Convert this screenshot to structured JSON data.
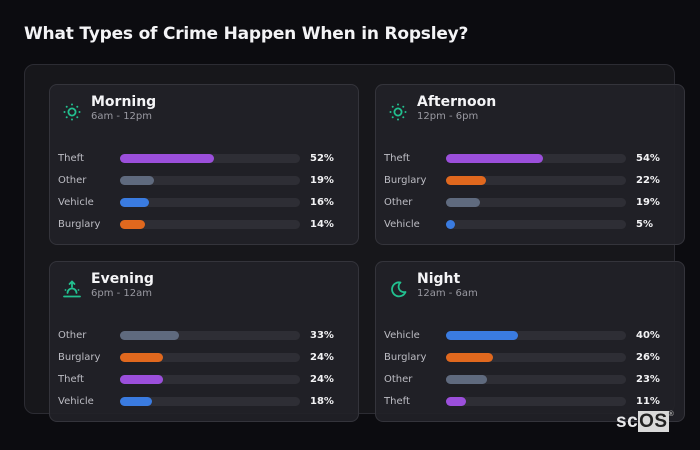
{
  "title": "What Types of Crime Happen When in Ropsley?",
  "colors": {
    "Theft": "#9b4fdb",
    "Other": "#5f6a7e",
    "Vehicle": "#3a7be0",
    "Burglary": "#e0681e",
    "icon": "#22c08f"
  },
  "cards": [
    {
      "name": "Morning",
      "range": "6am - 12pm",
      "icon": "sun-icon",
      "rows": [
        {
          "label": "Theft",
          "value": 52,
          "pct": "52%"
        },
        {
          "label": "Other",
          "value": 19,
          "pct": "19%"
        },
        {
          "label": "Vehicle",
          "value": 16,
          "pct": "16%"
        },
        {
          "label": "Burglary",
          "value": 14,
          "pct": "14%"
        }
      ]
    },
    {
      "name": "Afternoon",
      "range": "12pm - 6pm",
      "icon": "sun-icon",
      "rows": [
        {
          "label": "Theft",
          "value": 54,
          "pct": "54%"
        },
        {
          "label": "Burglary",
          "value": 22,
          "pct": "22%"
        },
        {
          "label": "Other",
          "value": 19,
          "pct": "19%"
        },
        {
          "label": "Vehicle",
          "value": 5,
          "pct": "5%"
        }
      ]
    },
    {
      "name": "Evening",
      "range": "6pm - 12am",
      "icon": "sunset-icon",
      "rows": [
        {
          "label": "Other",
          "value": 33,
          "pct": "33%"
        },
        {
          "label": "Burglary",
          "value": 24,
          "pct": "24%"
        },
        {
          "label": "Theft",
          "value": 24,
          "pct": "24%"
        },
        {
          "label": "Vehicle",
          "value": 18,
          "pct": "18%"
        }
      ]
    },
    {
      "name": "Night",
      "range": "12am - 6am",
      "icon": "moon-icon",
      "rows": [
        {
          "label": "Vehicle",
          "value": 40,
          "pct": "40%"
        },
        {
          "label": "Burglary",
          "value": 26,
          "pct": "26%"
        },
        {
          "label": "Other",
          "value": 23,
          "pct": "23%"
        },
        {
          "label": "Theft",
          "value": 11,
          "pct": "11%"
        }
      ]
    }
  ],
  "logo": {
    "sc": "sc",
    "os": "OS",
    "reg": "®"
  },
  "chart_data": [
    {
      "type": "bar",
      "orientation": "horizontal",
      "title": "Morning (6am - 12pm)",
      "categories": [
        "Theft",
        "Other",
        "Vehicle",
        "Burglary"
      ],
      "values": [
        52,
        19,
        16,
        14
      ],
      "unit": "%",
      "xlim": [
        0,
        100
      ]
    },
    {
      "type": "bar",
      "orientation": "horizontal",
      "title": "Afternoon (12pm - 6pm)",
      "categories": [
        "Theft",
        "Burglary",
        "Other",
        "Vehicle"
      ],
      "values": [
        54,
        22,
        19,
        5
      ],
      "unit": "%",
      "xlim": [
        0,
        100
      ]
    },
    {
      "type": "bar",
      "orientation": "horizontal",
      "title": "Evening (6pm - 12am)",
      "categories": [
        "Other",
        "Burglary",
        "Theft",
        "Vehicle"
      ],
      "values": [
        33,
        24,
        24,
        18
      ],
      "unit": "%",
      "xlim": [
        0,
        100
      ]
    },
    {
      "type": "bar",
      "orientation": "horizontal",
      "title": "Night (12am - 6am)",
      "categories": [
        "Vehicle",
        "Burglary",
        "Other",
        "Theft"
      ],
      "values": [
        40,
        26,
        23,
        11
      ],
      "unit": "%",
      "xlim": [
        0,
        100
      ]
    }
  ]
}
